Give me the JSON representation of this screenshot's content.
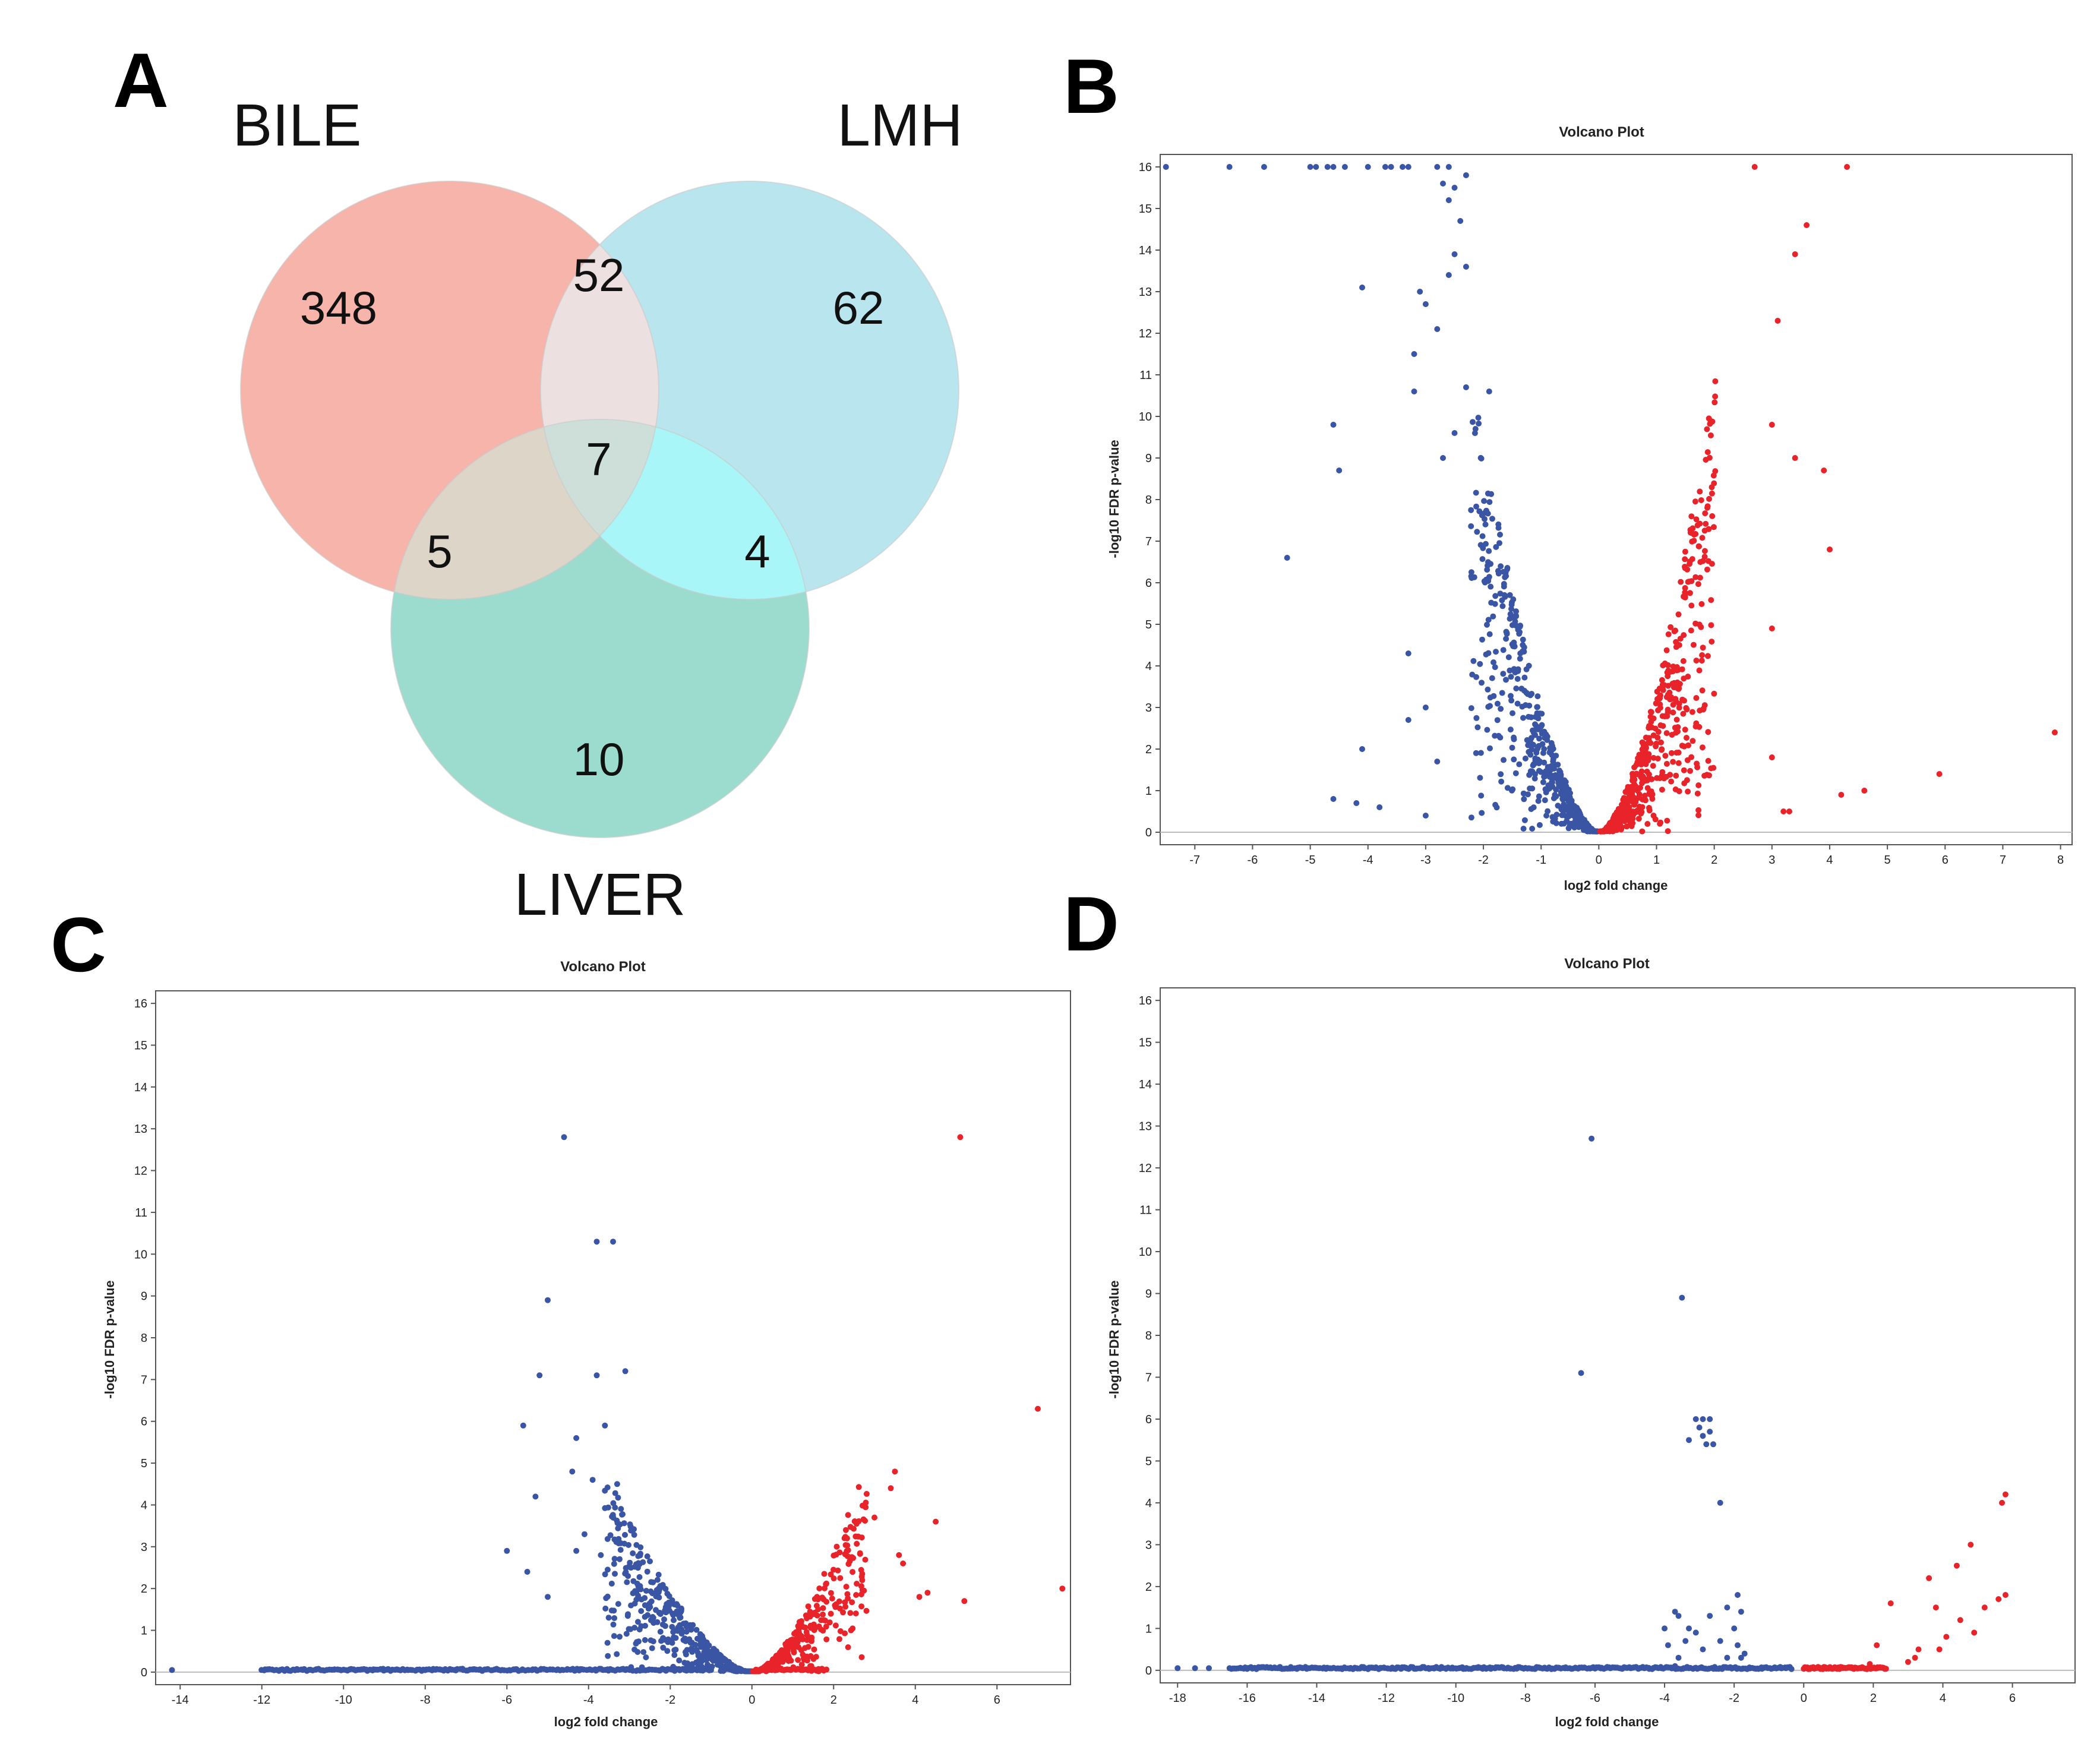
{
  "panels": {
    "a": "A",
    "b": "B",
    "c": "C",
    "d": "D"
  },
  "venn": {
    "set_labels": {
      "bile": "BILE",
      "lmh": "LMH",
      "liver": "LIVER"
    },
    "counts": {
      "bile_only": "348",
      "lmh_only": "62",
      "liver_only": "10",
      "bile_lmh": "52",
      "bile_liver": "5",
      "lmh_liver": "4",
      "all": "7"
    },
    "colors": {
      "bile": "#f4a79b",
      "lmh": "#a9e0ea",
      "liver": "#86d4c4"
    }
  },
  "chart_data": [
    {
      "panel": "A",
      "type": "venn",
      "sets": [
        "BILE",
        "LMH",
        "LIVER"
      ],
      "regions": [
        {
          "sets": [
            "BILE"
          ],
          "value": 348
        },
        {
          "sets": [
            "LMH"
          ],
          "value": 62
        },
        {
          "sets": [
            "LIVER"
          ],
          "value": 10
        },
        {
          "sets": [
            "BILE",
            "LMH"
          ],
          "value": 52
        },
        {
          "sets": [
            "BILE",
            "LIVER"
          ],
          "value": 5
        },
        {
          "sets": [
            "LMH",
            "LIVER"
          ],
          "value": 4
        },
        {
          "sets": [
            "BILE",
            "LMH",
            "LIVER"
          ],
          "value": 7
        }
      ]
    },
    {
      "panel": "B",
      "type": "scatter",
      "title": "Volcano Plot",
      "xlabel": "log2 fold change",
      "ylabel": "-log10 FDR p-value",
      "xlim": [
        -7.6,
        8.2
      ],
      "ylim": [
        -0.3,
        16.3
      ],
      "xticks": [
        -7,
        -6,
        -5,
        -4,
        -3,
        -2,
        -1,
        0,
        1,
        2,
        3,
        4,
        5,
        6,
        7,
        8
      ],
      "yticks": [
        0,
        1,
        2,
        3,
        4,
        5,
        6,
        7,
        8,
        9,
        10,
        11,
        12,
        13,
        14,
        15,
        16
      ],
      "colors": {
        "down": "#3a55a4",
        "up": "#e8232a"
      },
      "bulk": {
        "down": 520,
        "up": 560,
        "left_spread": 2.2,
        "right_spread": 2.0,
        "ymax": 10.5
      },
      "outliers": {
        "down": [
          [
            -7.5,
            16
          ],
          [
            -6.4,
            16
          ],
          [
            -5.8,
            16
          ],
          [
            -5.0,
            16
          ],
          [
            -4.9,
            16
          ],
          [
            -4.7,
            16
          ],
          [
            -4.6,
            16
          ],
          [
            -4.4,
            16
          ],
          [
            -4.0,
            16
          ],
          [
            -3.7,
            16
          ],
          [
            -3.6,
            16
          ],
          [
            -3.4,
            16
          ],
          [
            -3.3,
            16
          ],
          [
            -2.8,
            16
          ],
          [
            -2.6,
            16
          ],
          [
            -2.7,
            15.6
          ],
          [
            -2.3,
            15.8
          ],
          [
            -2.5,
            15.5
          ],
          [
            -2.6,
            15.2
          ],
          [
            -2.4,
            14.7
          ],
          [
            -2.5,
            13.9
          ],
          [
            -2.3,
            13.6
          ],
          [
            -2.6,
            13.4
          ],
          [
            -4.1,
            13.1
          ],
          [
            -3.1,
            13.0
          ],
          [
            -3.0,
            12.7
          ],
          [
            -2.8,
            12.1
          ],
          [
            -3.2,
            11.5
          ],
          [
            -2.3,
            10.7
          ],
          [
            -1.9,
            10.6
          ],
          [
            -3.2,
            10.6
          ],
          [
            -4.6,
            9.8
          ],
          [
            -2.5,
            9.6
          ],
          [
            -2.7,
            9.0
          ],
          [
            -4.5,
            8.7
          ],
          [
            -5.4,
            6.6
          ],
          [
            -3.3,
            4.3
          ],
          [
            -4.1,
            2.0
          ],
          [
            -3.0,
            3.0
          ],
          [
            -3.3,
            2.7
          ],
          [
            -4.6,
            0.8
          ],
          [
            -4.2,
            0.7
          ],
          [
            -3.8,
            0.6
          ],
          [
            -3.0,
            0.4
          ],
          [
            -2.8,
            1.7
          ]
        ],
        "up": [
          [
            2.7,
            16
          ],
          [
            4.3,
            16
          ],
          [
            3.6,
            14.6
          ],
          [
            3.4,
            13.9
          ],
          [
            3.1,
            12.3
          ],
          [
            3.0,
            9.8
          ],
          [
            3.9,
            8.7
          ],
          [
            3.4,
            9.0
          ],
          [
            4.0,
            6.8
          ],
          [
            3.0,
            4.9
          ],
          [
            7.9,
            2.4
          ],
          [
            5.9,
            1.4
          ],
          [
            4.6,
            1.0
          ],
          [
            4.2,
            0.9
          ],
          [
            3.0,
            1.8
          ],
          [
            3.2,
            0.5
          ],
          [
            3.3,
            0.5
          ]
        ]
      }
    },
    {
      "panel": "C",
      "type": "scatter",
      "title": "Volcano Plot",
      "xlabel": "log2 fold change",
      "ylabel": "-log10 FDR p-value",
      "xlim": [
        -14.6,
        7.8
      ],
      "ylim": [
        -0.3,
        16.3
      ],
      "xticks": [
        -14,
        -12,
        -10,
        -8,
        -6,
        -4,
        -2,
        0,
        2,
        4,
        6
      ],
      "yticks": [
        0,
        1,
        2,
        3,
        4,
        5,
        6,
        7,
        8,
        9,
        10,
        11,
        12,
        13,
        14,
        15,
        16
      ],
      "colors": {
        "down": "#3a55a4",
        "up": "#e8232a"
      },
      "bulk": {
        "down": 420,
        "up": 300,
        "left_spread": 3.6,
        "right_spread": 2.8,
        "ymax": 4.8
      },
      "baseline": {
        "down": {
          "from": -12.0,
          "to": -1.0,
          "count": 220
        },
        "up": {
          "from": 0.1,
          "to": 1.8,
          "count": 40
        },
        "extra_down": [
          [
            -14.2,
            0.05
          ]
        ]
      },
      "outliers": {
        "down": [
          [
            -4.6,
            12.8
          ],
          [
            -3.8,
            10.3
          ],
          [
            -3.4,
            10.3
          ],
          [
            -5.0,
            8.9
          ],
          [
            -5.2,
            7.1
          ],
          [
            -3.8,
            7.1
          ],
          [
            -3.1,
            7.2
          ],
          [
            -5.6,
            5.9
          ],
          [
            -5.3,
            4.2
          ],
          [
            -6.0,
            2.9
          ],
          [
            -5.5,
            2.4
          ],
          [
            -5.0,
            1.8
          ],
          [
            -4.3,
            5.6
          ],
          [
            -3.6,
            5.9
          ],
          [
            -4.4,
            4.8
          ],
          [
            -3.9,
            4.6
          ],
          [
            -3.3,
            4.5
          ],
          [
            -4.1,
            3.3
          ],
          [
            -4.3,
            2.9
          ],
          [
            -3.7,
            2.8
          ]
        ],
        "up": [
          [
            5.1,
            12.8
          ],
          [
            7.0,
            6.3
          ],
          [
            7.6,
            2.0
          ],
          [
            5.2,
            1.7
          ],
          [
            3.5,
            4.8
          ],
          [
            3.4,
            4.4
          ],
          [
            3.0,
            3.7
          ],
          [
            4.5,
            3.6
          ],
          [
            2.3,
            3.4
          ],
          [
            2.7,
            2.2
          ],
          [
            3.7,
            2.6
          ],
          [
            4.1,
            1.8
          ],
          [
            4.3,
            1.9
          ],
          [
            3.6,
            2.8
          ]
        ]
      }
    },
    {
      "panel": "D",
      "type": "scatter",
      "title": "Volcano Plot",
      "xlabel": "log2 fold change",
      "ylabel": "-log10 FDR p-value",
      "xlim": [
        -18.5,
        7.8
      ],
      "ylim": [
        -0.3,
        16.3
      ],
      "xticks": [
        -18,
        -16,
        -14,
        -12,
        -10,
        -8,
        -6,
        -4,
        -2,
        0,
        2,
        4,
        6
      ],
      "yticks": [
        0,
        1,
        2,
        3,
        4,
        5,
        6,
        7,
        8,
        9,
        10,
        11,
        12,
        13,
        14,
        15,
        16
      ],
      "colors": {
        "down": "#3a55a4",
        "up": "#e8232a"
      },
      "bulk": {
        "down": 0,
        "up": 0,
        "left_spread": 1,
        "right_spread": 1,
        "ymax": 1
      },
      "baseline": {
        "down": {
          "from": -16.5,
          "to": -0.3,
          "count": 330
        },
        "up": {
          "from": 0.0,
          "to": 2.4,
          "count": 70
        },
        "extra_down": [
          [
            -18.0,
            0.05
          ],
          [
            -17.5,
            0.05
          ],
          [
            -17.1,
            0.05
          ]
        ]
      },
      "outliers": {
        "down": [
          [
            -6.1,
            12.7
          ],
          [
            -3.5,
            8.9
          ],
          [
            -6.4,
            7.1
          ],
          [
            -3.1,
            6.0
          ],
          [
            -2.9,
            6.0
          ],
          [
            -2.7,
            6.0
          ],
          [
            -3.3,
            5.5
          ],
          [
            -2.9,
            5.6
          ],
          [
            -2.8,
            5.4
          ],
          [
            -2.6,
            5.4
          ],
          [
            -3.0,
            5.8
          ],
          [
            -2.7,
            5.7
          ],
          [
            -2.4,
            4.0
          ],
          [
            -1.9,
            1.8
          ],
          [
            -2.2,
            1.5
          ],
          [
            -1.8,
            1.4
          ],
          [
            -3.7,
            1.4
          ],
          [
            -3.6,
            1.3
          ],
          [
            -3.3,
            1.0
          ],
          [
            -2.7,
            1.3
          ],
          [
            -4.0,
            1.0
          ],
          [
            -3.4,
            0.7
          ],
          [
            -3.1,
            0.9
          ],
          [
            -2.9,
            0.5
          ],
          [
            -2.4,
            0.7
          ],
          [
            -1.9,
            0.6
          ],
          [
            -2.0,
            1.0
          ],
          [
            -3.6,
            0.3
          ],
          [
            -1.8,
            0.3
          ],
          [
            -1.7,
            0.4
          ],
          [
            -3.9,
            0.6
          ],
          [
            -2.2,
            0.3
          ],
          [
            -3.7,
            0.1
          ]
        ],
        "up": [
          [
            5.8,
            4.2
          ],
          [
            5.7,
            4.0
          ],
          [
            4.8,
            3.0
          ],
          [
            4.4,
            2.5
          ],
          [
            3.6,
            2.2
          ],
          [
            3.8,
            1.5
          ],
          [
            5.8,
            1.8
          ],
          [
            5.6,
            1.7
          ],
          [
            5.2,
            1.5
          ],
          [
            4.5,
            1.2
          ],
          [
            4.1,
            0.8
          ],
          [
            3.9,
            0.5
          ],
          [
            3.3,
            0.5
          ],
          [
            2.5,
            1.6
          ],
          [
            2.1,
            0.6
          ],
          [
            3.0,
            0.2
          ],
          [
            3.2,
            0.3
          ],
          [
            4.9,
            0.9
          ],
          [
            1.9,
            0.15
          ]
        ]
      }
    }
  ]
}
